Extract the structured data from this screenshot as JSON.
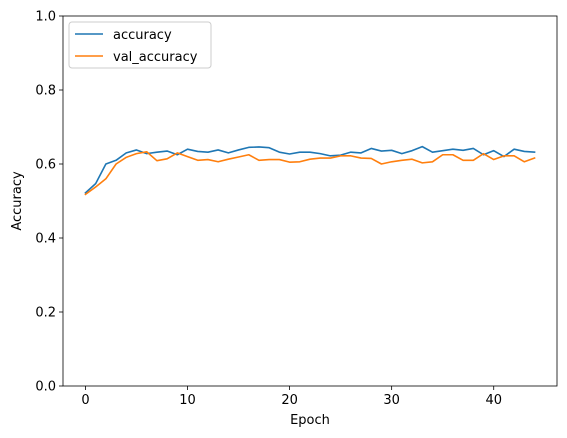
{
  "chart_data": {
    "type": "line",
    "xlabel": "Epoch",
    "ylabel": "Accuracy",
    "xlim": [
      -2.2,
      46.2
    ],
    "ylim": [
      0,
      1
    ],
    "xticks": [
      0,
      10,
      20,
      30,
      40
    ],
    "xtick_labels": [
      "0",
      "10",
      "20",
      "30",
      "40"
    ],
    "yticks": [
      0.0,
      0.2,
      0.4,
      0.6,
      0.8,
      1.0
    ],
    "ytick_labels": [
      "0.0",
      "0.2",
      "0.4",
      "0.6",
      "0.8",
      "1.0"
    ],
    "grid": false,
    "legend_position": "top-left",
    "x": [
      0,
      1,
      2,
      3,
      4,
      5,
      6,
      7,
      8,
      9,
      10,
      11,
      12,
      13,
      14,
      15,
      16,
      17,
      18,
      19,
      20,
      21,
      22,
      23,
      24,
      25,
      26,
      27,
      28,
      29,
      30,
      31,
      32,
      33,
      34,
      35,
      36,
      37,
      38,
      39,
      40,
      41,
      42,
      43,
      44
    ],
    "series": [
      {
        "name": "accuracy",
        "color": "#1f77b4",
        "values": [
          0.522,
          0.547,
          0.6,
          0.61,
          0.63,
          0.638,
          0.628,
          0.632,
          0.635,
          0.625,
          0.64,
          0.634,
          0.632,
          0.638,
          0.63,
          0.638,
          0.645,
          0.646,
          0.644,
          0.632,
          0.627,
          0.632,
          0.632,
          0.628,
          0.622,
          0.624,
          0.632,
          0.63,
          0.642,
          0.635,
          0.637,
          0.628,
          0.636,
          0.647,
          0.632,
          0.636,
          0.64,
          0.637,
          0.642,
          0.625,
          0.636,
          0.62,
          0.64,
          0.634,
          0.632
        ]
      },
      {
        "name": "val_accuracy",
        "color": "#ff7f0e",
        "values": [
          0.518,
          0.538,
          0.56,
          0.6,
          0.618,
          0.628,
          0.633,
          0.609,
          0.614,
          0.63,
          0.62,
          0.61,
          0.612,
          0.606,
          0.613,
          0.619,
          0.625,
          0.61,
          0.612,
          0.612,
          0.605,
          0.606,
          0.613,
          0.616,
          0.616,
          0.622,
          0.622,
          0.616,
          0.615,
          0.6,
          0.606,
          0.61,
          0.613,
          0.603,
          0.606,
          0.625,
          0.625,
          0.61,
          0.61,
          0.628,
          0.612,
          0.622,
          0.622,
          0.606,
          0.616
        ]
      }
    ]
  }
}
